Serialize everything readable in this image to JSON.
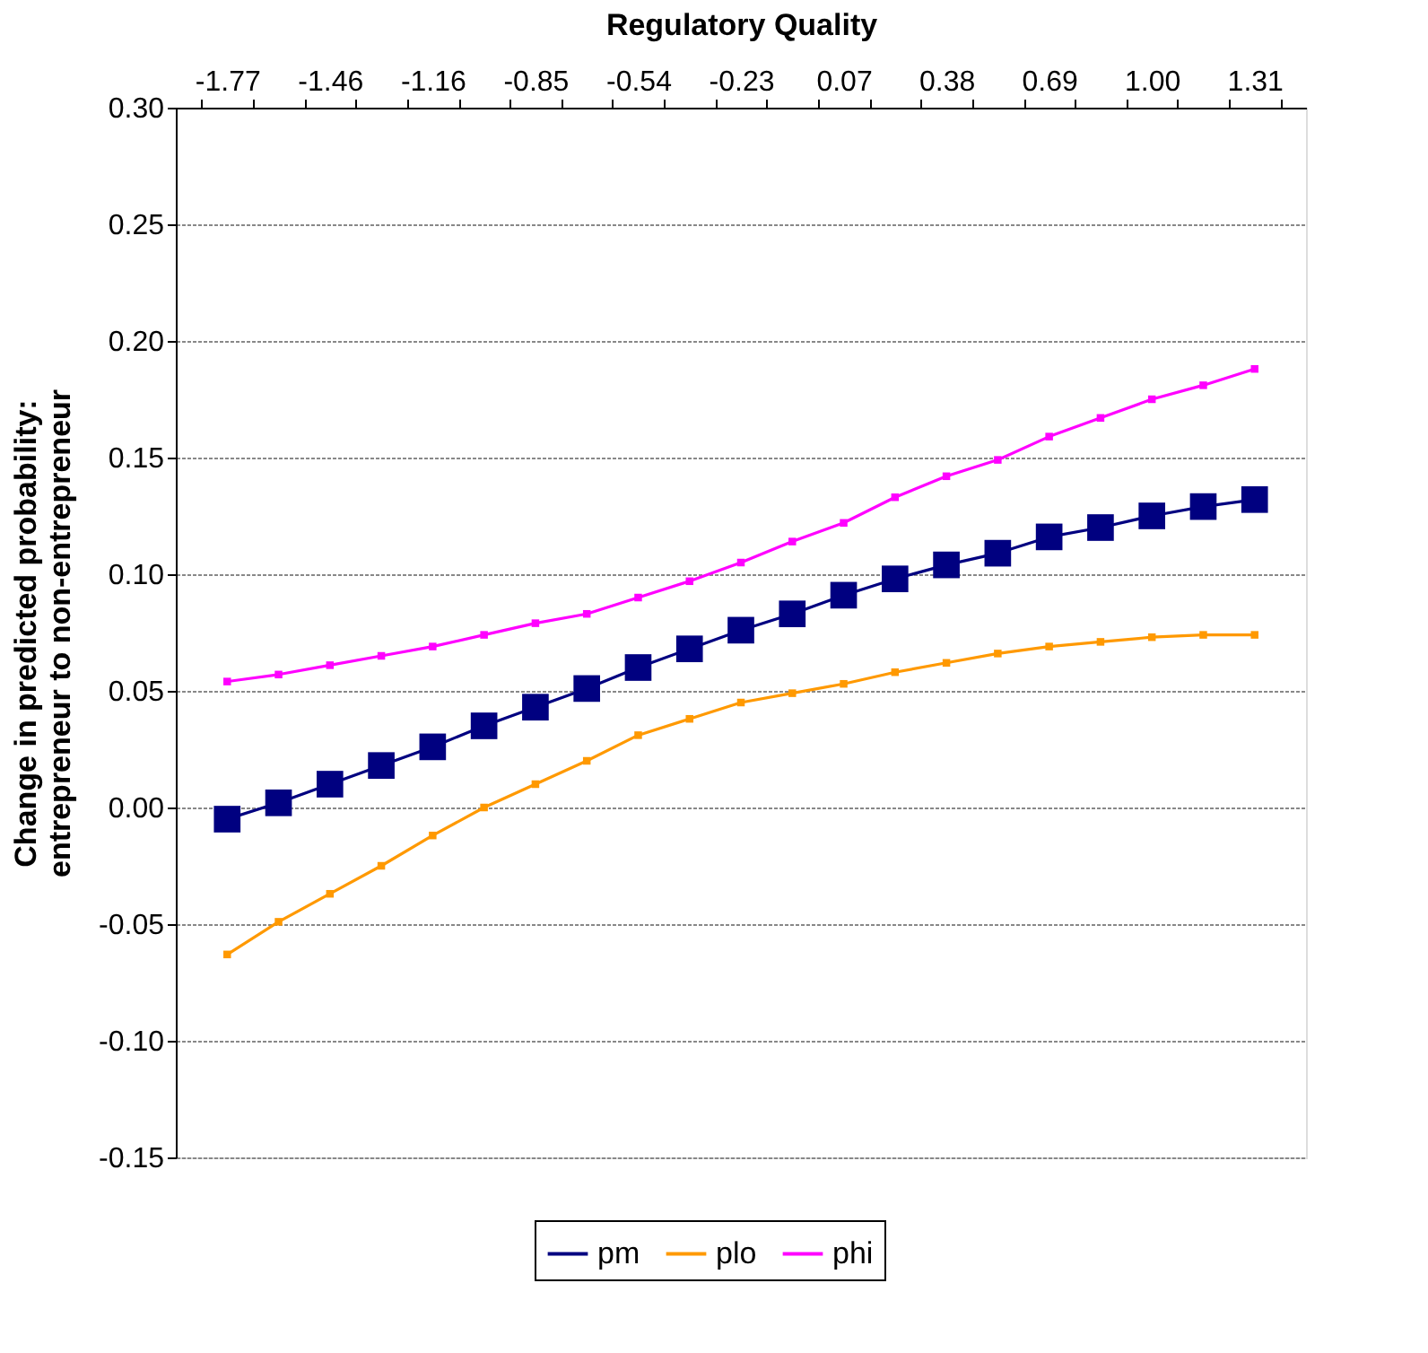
{
  "chart_data": {
    "type": "line",
    "xlabel": "Regulatory Quality",
    "ylabel": "Change in predicted probability:\nentrepreneur to non-entrepreneur",
    "categories": [
      "-1.77",
      null,
      "-1.46",
      null,
      "-1.16",
      null,
      "-0.85",
      null,
      "-0.54",
      null,
      "-0.23",
      null,
      "0.07",
      null,
      "0.38",
      null,
      "0.69",
      null,
      "1.00",
      null,
      "1.31"
    ],
    "series": [
      {
        "name": "pm",
        "color": "#000080",
        "values": [
          -0.005,
          0.002,
          0.01,
          0.018,
          0.026,
          0.035,
          0.043,
          0.051,
          0.06,
          0.068,
          0.076,
          0.083,
          0.091,
          0.098,
          0.104,
          0.109,
          0.116,
          0.12,
          0.125,
          0.129,
          0.132
        ]
      },
      {
        "name": "plo",
        "color": "#ff9900",
        "values": [
          -0.063,
          -0.049,
          -0.037,
          -0.025,
          -0.012,
          0.0,
          0.01,
          0.02,
          0.031,
          0.038,
          0.045,
          0.049,
          0.053,
          0.058,
          0.062,
          0.066,
          0.069,
          0.071,
          0.073,
          0.074,
          0.074
        ]
      },
      {
        "name": "phi",
        "color": "#ff00ff",
        "values": [
          0.054,
          0.057,
          0.061,
          0.065,
          0.069,
          0.074,
          0.079,
          0.083,
          0.09,
          0.097,
          0.105,
          0.114,
          0.122,
          0.133,
          0.142,
          0.149,
          0.159,
          0.167,
          0.175,
          0.181,
          0.188
        ]
      }
    ],
    "ylim": [
      -0.15,
      0.3
    ],
    "yticks": [
      {
        "value": -0.15,
        "label": "-0.15"
      },
      {
        "value": -0.1,
        "label": "-0.10"
      },
      {
        "value": -0.05,
        "label": "-0.05"
      },
      {
        "value": 0,
        "label": "0.00"
      },
      {
        "value": 0.05,
        "label": "0.05"
      },
      {
        "value": 0.1,
        "label": "0.10"
      },
      {
        "value": 0.15,
        "label": "0.15"
      },
      {
        "value": 0.2,
        "label": "0.20"
      },
      {
        "value": 0.25,
        "label": "0.25"
      },
      {
        "value": 0.3,
        "label": "0.30"
      }
    ],
    "grid": "y",
    "legend": "bottom",
    "marker": "square",
    "line_style": "solid"
  }
}
